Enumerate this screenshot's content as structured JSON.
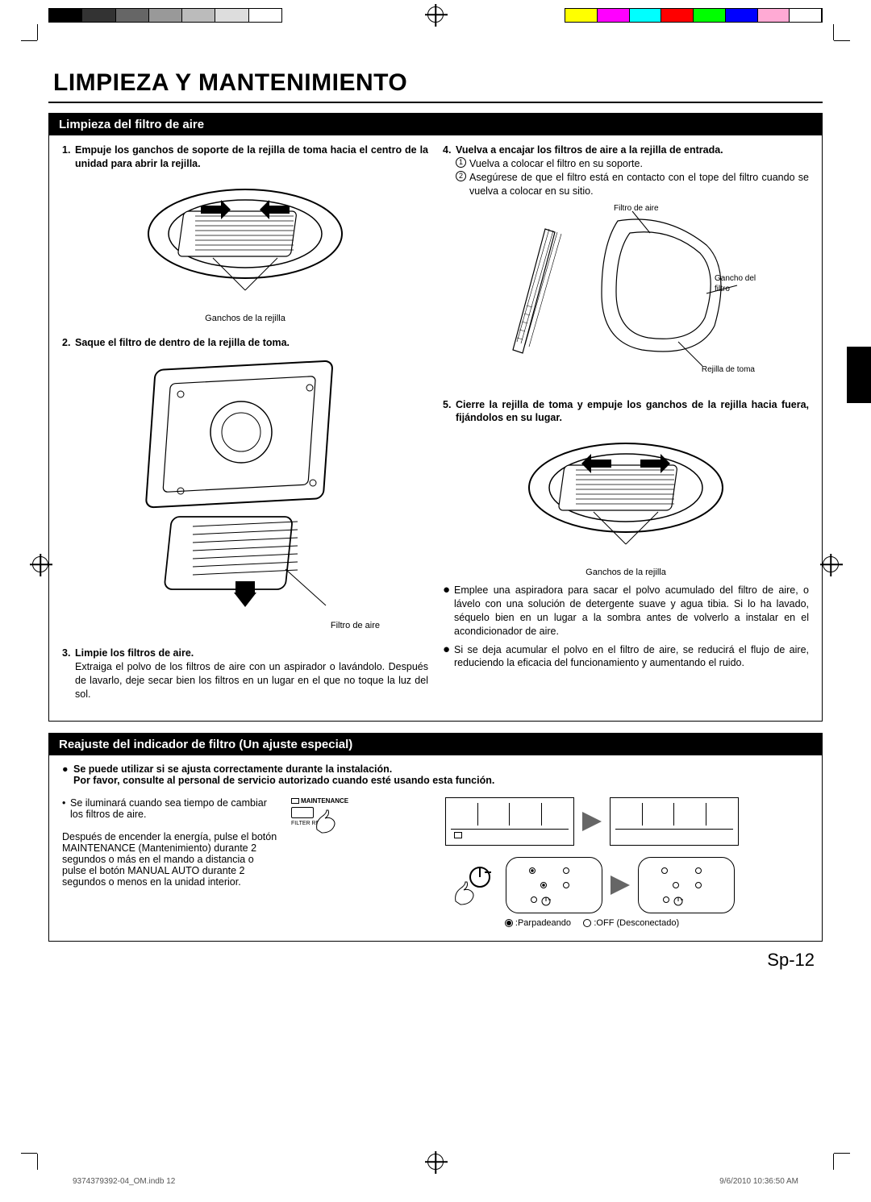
{
  "color_bar_left": [
    "#000000",
    "#333333",
    "#666666",
    "#999999",
    "#bbbbbb",
    "#dddddd",
    "#ffffff"
  ],
  "color_bar_right": [
    "#ffff00",
    "#ff00ff",
    "#00ffff",
    "#ff0000",
    "#00ff00",
    "#0000ff",
    "#ffaad4",
    "#ffffff"
  ],
  "title": "LIMPIEZA Y MANTENIMIENTO",
  "sec1_title": "Limpieza del filtro de aire",
  "s1_num": "1.",
  "s1_text": "Empuje los ganchos de soporte de la rejilla de toma hacia el centro de la unidad para abrir la rejilla.",
  "s1_cap": "Ganchos de la rejilla",
  "s2_num": "2.",
  "s2_text": "Saque el filtro de dentro de la rejilla de toma.",
  "s2_cap": "Filtro de aire",
  "s3_num": "3.",
  "s3_text": "Limpie los filtros de aire.",
  "s3_sub": "Extraiga el polvo de los filtros de aire con un aspirador o lavándolo. Después de lavarlo, deje secar bien los filtros en un lugar en el que no toque la luz del sol.",
  "s4_num": "4.",
  "s4_text": "Vuelva a encajar los filtros de aire a la rejilla de entrada.",
  "s4_sub1": "Vuelva a colocar el filtro en su soporte.",
  "s4_sub2": "Asegúrese de que el filtro está en contacto con el tope del filtro cuando se vuelva a colocar en su sitio.",
  "s4_cap_filter": "Filtro de aire",
  "s4_cap_hook": "Gancho del filtro",
  "s4_cap_grille": "Rejilla de toma",
  "s5_num": "5.",
  "s5_text": "Cierre la rejilla de toma y empuje los ganchos de la rejilla hacia fuera, fijándolos en su lugar.",
  "s5_cap": "Ganchos de la rejilla",
  "b1": "Emplee una aspiradora para sacar el polvo acumulado del filtro de aire, o lávelo con una solución de detergente suave y agua tibia. Si lo ha lavado, séquelo bien en un lugar a la sombra antes de volverlo a instalar en el acondicionador de aire.",
  "b2": "Si se deja acumular el polvo en el filtro de aire, se reducirá el flujo de aire, reduciendo la eficacia del funcionamiento y aumentando el ruido.",
  "sec2_title": "Reajuste del indicador de filtro (Un ajuste especial)",
  "sec2_l1": "Se puede utilizar si se ajusta correctamente durante la instalación.",
  "sec2_l2": "Por favor, consulte al personal de servicio autorizado cuando esté usando esta función.",
  "sec2_p1": "Se iluminará cuando sea tiempo de cambiar los filtros de aire.",
  "sec2_p2": "Después de encender la energía, pulse el botón MAINTENANCE (Mantenimiento) durante 2 segundos o más en el mando a distancia o pulse el botón MANUAL AUTO durante 2 segundos o menos en la unidad interior.",
  "btn_maint": "MAINTENANCE",
  "btn_filter": "FILTER RESET",
  "legend_flash": ":Parpadeando",
  "legend_off": ":OFF (Desconectado)",
  "page_num": "Sp-12",
  "footer_left": "9374379392-04_OM.indb   12",
  "footer_right": "9/6/2010   10:36:50 AM"
}
